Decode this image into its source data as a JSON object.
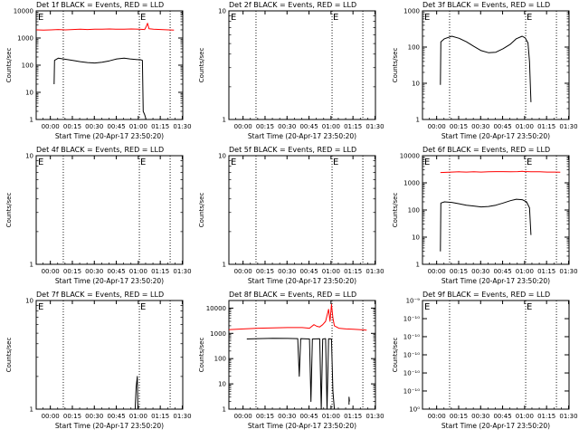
{
  "colors": {
    "background": "#ffffff",
    "axis": "#000000",
    "events": "#000000",
    "lld": "#ff0000"
  },
  "common": {
    "ylabel": "Counts/sec",
    "xlabel": "Start Time (20-Apr-17 23:50:20)",
    "x_tick_labels": [
      "00:00",
      "00:15",
      "00:30",
      "00:45",
      "01:00",
      "01:15",
      "01:30"
    ],
    "x_minutes_since_start": [
      9.67,
      24.67,
      39.67,
      54.67,
      69.67,
      84.67,
      99.67
    ],
    "xlim_minutes_since_start": [
      0,
      100
    ]
  },
  "chart_data": [
    {
      "type": "line",
      "title": "Det 1f BLACK = Events, RED = LLD",
      "ylog": true,
      "ylim": [
        1,
        10000
      ],
      "y_tick_labels": [
        "1",
        "10",
        "100",
        "1000",
        "10000"
      ],
      "y_tick_values": [
        1,
        10,
        100,
        1000,
        10000
      ],
      "event_markers": [
        {
          "x": 0.6,
          "label": "E"
        },
        {
          "x": 70.4,
          "label": "E"
        }
      ],
      "dotted_lines_x": [
        18.5,
        70.4,
        91.4
      ],
      "series": [
        {
          "key": "events",
          "points": [
            [
              12.2,
              20
            ],
            [
              12.5,
              150
            ],
            [
              15,
              180
            ],
            [
              20,
              165
            ],
            [
              25,
              150
            ],
            [
              30,
              135
            ],
            [
              35,
              125
            ],
            [
              40,
              120
            ],
            [
              45,
              128
            ],
            [
              50,
              145
            ],
            [
              55,
              170
            ],
            [
              60,
              180
            ],
            [
              64,
              170
            ],
            [
              69,
              160
            ],
            [
              71,
              160
            ],
            [
              72.5,
              150
            ],
            [
              73,
              2
            ],
            [
              74,
              1.5
            ],
            [
              75,
              1
            ]
          ]
        },
        {
          "key": "lld",
          "points": [
            [
              0,
              2000
            ],
            [
              5,
              1950
            ],
            [
              10,
              2000
            ],
            [
              15,
              2050
            ],
            [
              20,
              2000
            ],
            [
              25,
              2050
            ],
            [
              30,
              2100
            ],
            [
              35,
              2050
            ],
            [
              40,
              2100
            ],
            [
              45,
              2100
            ],
            [
              50,
              2150
            ],
            [
              55,
              2100
            ],
            [
              60,
              2100
            ],
            [
              65,
              2150
            ],
            [
              70,
              2100
            ],
            [
              74,
              2050
            ],
            [
              75,
              2600
            ],
            [
              76,
              3500
            ],
            [
              77,
              2200
            ],
            [
              80,
              2100
            ],
            [
              85,
              2050
            ],
            [
              90,
              2000
            ],
            [
              94,
              1950
            ]
          ]
        }
      ]
    },
    {
      "type": "line",
      "title": "Det 2f BLACK = Events, RED = LLD",
      "ylog": true,
      "ylim": [
        1,
        10
      ],
      "y_tick_labels": [
        "1",
        "10"
      ],
      "y_tick_values": [
        1,
        10
      ],
      "event_markers": [
        {
          "x": 0.6,
          "label": "E"
        },
        {
          "x": 70.4,
          "label": "E"
        }
      ],
      "dotted_lines_x": [
        18.5,
        70.4,
        91.4
      ],
      "series": []
    },
    {
      "type": "line",
      "title": "Det 3f BLACK = Events, RED = LLD",
      "ylog": true,
      "ylim": [
        1,
        1000
      ],
      "y_tick_labels": [
        "1",
        "10",
        "100",
        "1000"
      ],
      "y_tick_values": [
        1,
        10,
        100,
        1000
      ],
      "event_markers": [
        {
          "x": 0.6,
          "label": "E"
        },
        {
          "x": 70.4,
          "label": "E"
        }
      ],
      "dotted_lines_x": [
        18.5,
        70.4,
        91.4
      ],
      "series": [
        {
          "key": "events",
          "points": [
            [
              12.2,
              9
            ],
            [
              12.5,
              140
            ],
            [
              15,
              170
            ],
            [
              20,
              200
            ],
            [
              25,
              175
            ],
            [
              30,
              140
            ],
            [
              35,
              105
            ],
            [
              40,
              80
            ],
            [
              45,
              70
            ],
            [
              50,
              72
            ],
            [
              55,
              90
            ],
            [
              60,
              120
            ],
            [
              64,
              170
            ],
            [
              68,
              200
            ],
            [
              70,
              180
            ],
            [
              72,
              130
            ],
            [
              73,
              40
            ],
            [
              74,
              3
            ]
          ]
        }
      ]
    },
    {
      "type": "line",
      "title": "Det 4f BLACK = Events, RED = LLD",
      "ylog": true,
      "ylim": [
        1,
        10
      ],
      "y_tick_labels": [
        "1",
        "10"
      ],
      "y_tick_values": [
        1,
        10
      ],
      "event_markers": [
        {
          "x": 0.6,
          "label": "E"
        },
        {
          "x": 70.4,
          "label": "E"
        }
      ],
      "dotted_lines_x": [
        18.5,
        70.4,
        91.4
      ],
      "series": []
    },
    {
      "type": "line",
      "title": "Det 5f BLACK = Events, RED = LLD",
      "ylog": true,
      "ylim": [
        1,
        10
      ],
      "y_tick_labels": [
        "1",
        "10"
      ],
      "y_tick_values": [
        1,
        10
      ],
      "event_markers": [
        {
          "x": 0.6,
          "label": "E"
        },
        {
          "x": 70.4,
          "label": "E"
        }
      ],
      "dotted_lines_x": [
        18.5,
        70.4,
        91.4
      ],
      "series": []
    },
    {
      "type": "line",
      "title": "Det 6f BLACK = Events, RED = LLD",
      "ylog": true,
      "ylim": [
        1,
        10000
      ],
      "y_tick_labels": [
        "1",
        "10",
        "100",
        "1000",
        "10000"
      ],
      "y_tick_values": [
        1,
        10,
        100,
        1000,
        10000
      ],
      "event_markers": [
        {
          "x": 0.6,
          "label": "E"
        },
        {
          "x": 70.4,
          "label": "E"
        }
      ],
      "dotted_lines_x": [
        18.5,
        70.4,
        91.4
      ],
      "series": [
        {
          "key": "events",
          "points": [
            [
              12.2,
              3
            ],
            [
              12.5,
              180
            ],
            [
              15,
              200
            ],
            [
              20,
              190
            ],
            [
              25,
              170
            ],
            [
              30,
              150
            ],
            [
              35,
              140
            ],
            [
              40,
              130
            ],
            [
              45,
              135
            ],
            [
              50,
              150
            ],
            [
              55,
              180
            ],
            [
              60,
              220
            ],
            [
              64,
              250
            ],
            [
              68,
              240
            ],
            [
              71,
              200
            ],
            [
              73,
              120
            ],
            [
              74,
              12
            ]
          ]
        },
        {
          "key": "lld",
          "points": [
            [
              12.2,
              2400
            ],
            [
              20,
              2500
            ],
            [
              25,
              2550
            ],
            [
              30,
              2500
            ],
            [
              35,
              2550
            ],
            [
              40,
              2500
            ],
            [
              45,
              2550
            ],
            [
              50,
              2600
            ],
            [
              55,
              2600
            ],
            [
              60,
              2550
            ],
            [
              65,
              2600
            ],
            [
              68,
              2650
            ],
            [
              70,
              2600
            ],
            [
              72,
              2600
            ],
            [
              74,
              2550
            ],
            [
              80,
              2550
            ],
            [
              85,
              2500
            ],
            [
              90,
              2500
            ],
            [
              94,
              2450
            ]
          ]
        }
      ]
    },
    {
      "type": "line",
      "title": "Det 7f BLACK = Events, RED = LLD",
      "ylog": true,
      "ylim": [
        1,
        10
      ],
      "y_tick_labels": [
        "1",
        "10"
      ],
      "y_tick_values": [
        1,
        10
      ],
      "event_markers": [
        {
          "x": 0.6,
          "label": "E"
        },
        {
          "x": 70.4,
          "label": "E"
        }
      ],
      "dotted_lines_x": [
        18.5,
        70.4,
        91.4
      ],
      "series": [
        {
          "key": "events",
          "points": [
            [
              67.5,
              1
            ],
            [
              68.2,
              1.6
            ],
            [
              69,
              2
            ],
            [
              69.4,
              1
            ]
          ]
        }
      ]
    },
    {
      "type": "line",
      "title": "Det 8f BLACK = Events, RED = LLD",
      "ylog": true,
      "ylim": [
        1,
        20000
      ],
      "y_tick_labels": [
        "1",
        "10",
        "100",
        "1000",
        "10000"
      ],
      "y_tick_values": [
        1,
        10,
        100,
        1000,
        10000
      ],
      "event_markers": [],
      "dotted_lines_x": [
        18.5,
        70.4,
        91.4
      ],
      "series": [
        {
          "key": "events",
          "points": [
            [
              12.2,
              600
            ],
            [
              20,
              620
            ],
            [
              30,
              640
            ],
            [
              40,
              630
            ],
            [
              47,
              620
            ],
            [
              48,
              20
            ],
            [
              49,
              620
            ],
            [
              55,
              600
            ],
            [
              56,
              2
            ],
            [
              57,
              600
            ],
            [
              62,
              610
            ],
            [
              63,
              1
            ],
            [
              64,
              600
            ],
            [
              66,
              620
            ],
            [
              67,
              1
            ],
            [
              68,
              610
            ],
            [
              70,
              600
            ],
            [
              71,
              5
            ],
            [
              72,
              1
            ]
          ]
        },
        {
          "key": "events_tail",
          "points": [
            [
              82,
              1.5
            ],
            [
              82,
              3
            ],
            [
              82.3,
              2
            ]
          ]
        },
        {
          "key": "lld",
          "points": [
            [
              0,
              1400
            ],
            [
              10,
              1500
            ],
            [
              20,
              1600
            ],
            [
              30,
              1650
            ],
            [
              40,
              1700
            ],
            [
              50,
              1700
            ],
            [
              55,
              1600
            ],
            [
              58,
              2200
            ],
            [
              60,
              1900
            ],
            [
              62,
              1800
            ],
            [
              64,
              2200
            ],
            [
              66,
              3000
            ],
            [
              68,
              9000
            ],
            [
              69,
              3000
            ],
            [
              70,
              14000
            ],
            [
              71,
              4000
            ],
            [
              72,
              2000
            ],
            [
              75,
              1600
            ],
            [
              80,
              1500
            ],
            [
              85,
              1450
            ],
            [
              90,
              1400
            ],
            [
              94,
              1350
            ]
          ]
        }
      ]
    },
    {
      "type": "line",
      "title": "Det 9f BLACK = Events, RED = LLD",
      "ylog": true,
      "ylim": [
        1,
        1e-10
      ],
      "y_tick_labels": [
        "10⁰",
        "10⁻¹⁰",
        "10⁻¹⁰",
        "10⁻¹⁰",
        "10⁻¹⁰",
        "10⁻¹⁰",
        "10⁻⁹"
      ],
      "y_tick_fracs": [
        0,
        0.167,
        0.333,
        0.5,
        0.667,
        0.833,
        1
      ],
      "event_markers": [
        {
          "x": 0.6,
          "label": "E"
        },
        {
          "x": 70.4,
          "label": "E"
        }
      ],
      "dotted_lines_x": [
        18.5,
        70.4,
        91.4
      ],
      "series": []
    }
  ]
}
